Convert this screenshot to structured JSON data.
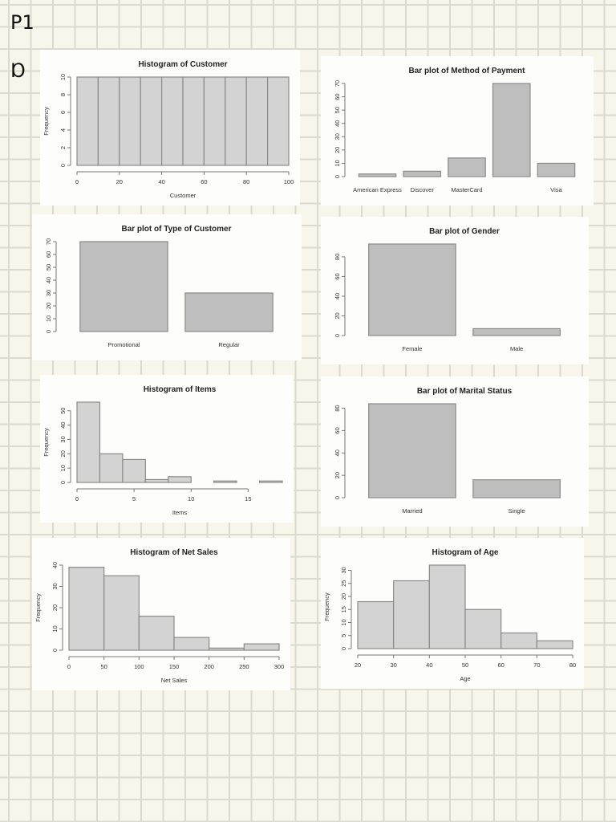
{
  "annotations": {
    "page_label": "P1",
    "mark": "Ɒ"
  },
  "chart_data": [
    {
      "id": "customer",
      "type": "bar",
      "subtype": "histogram",
      "title": "Histogram of Customer",
      "xlabel": "Customer",
      "ylabel": "Frequency",
      "bins": [
        [
          0,
          10
        ],
        [
          10,
          20
        ],
        [
          20,
          30
        ],
        [
          30,
          40
        ],
        [
          40,
          50
        ],
        [
          50,
          60
        ],
        [
          60,
          70
        ],
        [
          70,
          80
        ],
        [
          80,
          90
        ],
        [
          90,
          100
        ]
      ],
      "values": [
        10,
        10,
        10,
        10,
        10,
        10,
        10,
        10,
        10,
        10
      ],
      "xticks": [
        0,
        20,
        40,
        60,
        80,
        100
      ],
      "yticks": [
        0,
        2,
        4,
        6,
        8,
        10
      ],
      "xlim": [
        0,
        100
      ],
      "ylim": [
        0,
        10
      ],
      "fill": "#d3d3d3"
    },
    {
      "id": "payment",
      "type": "bar",
      "title": "Bar plot of Method of Payment",
      "xlabel": "",
      "ylabel": "",
      "categories": [
        "American Express",
        "Discover",
        "MasterCard",
        "",
        "Visa"
      ],
      "values": [
        2,
        4,
        14,
        70,
        10
      ],
      "yticks": [
        0,
        10,
        20,
        30,
        40,
        50,
        60,
        70
      ],
      "ylim": [
        0,
        70
      ],
      "fill": "#bebebe"
    },
    {
      "id": "customer_type",
      "type": "bar",
      "title": "Bar plot of Type of Customer",
      "xlabel": "",
      "ylabel": "",
      "categories": [
        "Promotional",
        "Regular"
      ],
      "values": [
        70,
        30
      ],
      "yticks": [
        0,
        10,
        20,
        30,
        40,
        50,
        60,
        70
      ],
      "ylim": [
        0,
        70
      ],
      "fill": "#bebebe"
    },
    {
      "id": "gender",
      "type": "bar",
      "title": "Bar plot of Gender",
      "xlabel": "",
      "ylabel": "",
      "categories": [
        "Female",
        "Male"
      ],
      "values": [
        93,
        7
      ],
      "yticks": [
        0,
        20,
        40,
        60,
        80
      ],
      "ylim": [
        0,
        93
      ],
      "fill": "#bebebe"
    },
    {
      "id": "items",
      "type": "bar",
      "subtype": "histogram",
      "title": "Histogram of Items",
      "xlabel": "Items",
      "ylabel": "Frequency",
      "bins": [
        [
          0,
          2
        ],
        [
          2,
          4
        ],
        [
          4,
          6
        ],
        [
          6,
          8
        ],
        [
          8,
          10
        ],
        [
          10,
          12
        ],
        [
          12,
          14
        ],
        [
          14,
          16
        ],
        [
          16,
          18
        ]
      ],
      "values": [
        56,
        20,
        16,
        2,
        4,
        0,
        1,
        0,
        1
      ],
      "xticks": [
        0,
        5,
        10,
        15
      ],
      "yticks": [
        0,
        10,
        20,
        30,
        40,
        50
      ],
      "xlim": [
        0,
        18
      ],
      "ylim": [
        0,
        56
      ],
      "fill": "#d3d3d3"
    },
    {
      "id": "marital",
      "type": "bar",
      "title": "Bar plot of Marital Status",
      "xlabel": "",
      "ylabel": "",
      "categories": [
        "Married",
        "Single"
      ],
      "values": [
        84,
        16
      ],
      "yticks": [
        0,
        20,
        40,
        60,
        80
      ],
      "ylim": [
        0,
        84
      ],
      "fill": "#bebebe"
    },
    {
      "id": "net_sales",
      "type": "bar",
      "subtype": "histogram",
      "title": "Histogram of Net Sales",
      "xlabel": "Net Sales",
      "ylabel": "Frequency",
      "bins": [
        [
          0,
          50
        ],
        [
          50,
          100
        ],
        [
          100,
          150
        ],
        [
          150,
          200
        ],
        [
          200,
          250
        ],
        [
          250,
          300
        ]
      ],
      "values": [
        39,
        35,
        16,
        6,
        1,
        3
      ],
      "xticks": [
        0,
        50,
        100,
        150,
        200,
        250,
        300
      ],
      "yticks": [
        0,
        10,
        20,
        30,
        40
      ],
      "xlim": [
        0,
        300
      ],
      "ylim": [
        0,
        40
      ],
      "fill": "#d3d3d3"
    },
    {
      "id": "age",
      "type": "bar",
      "subtype": "histogram",
      "title": "Histogram of Age",
      "xlabel": "Age",
      "ylabel": "Frequency",
      "bins": [
        [
          20,
          30
        ],
        [
          30,
          40
        ],
        [
          40,
          50
        ],
        [
          50,
          60
        ],
        [
          60,
          70
        ],
        [
          70,
          80
        ]
      ],
      "values": [
        18,
        26,
        32,
        15,
        6,
        3
      ],
      "xticks": [
        20,
        30,
        40,
        50,
        60,
        70,
        80
      ],
      "yticks": [
        0,
        5,
        10,
        15,
        20,
        25,
        30
      ],
      "xlim": [
        20,
        80
      ],
      "ylim": [
        0,
        32
      ],
      "fill": "#d3d3d3"
    }
  ]
}
